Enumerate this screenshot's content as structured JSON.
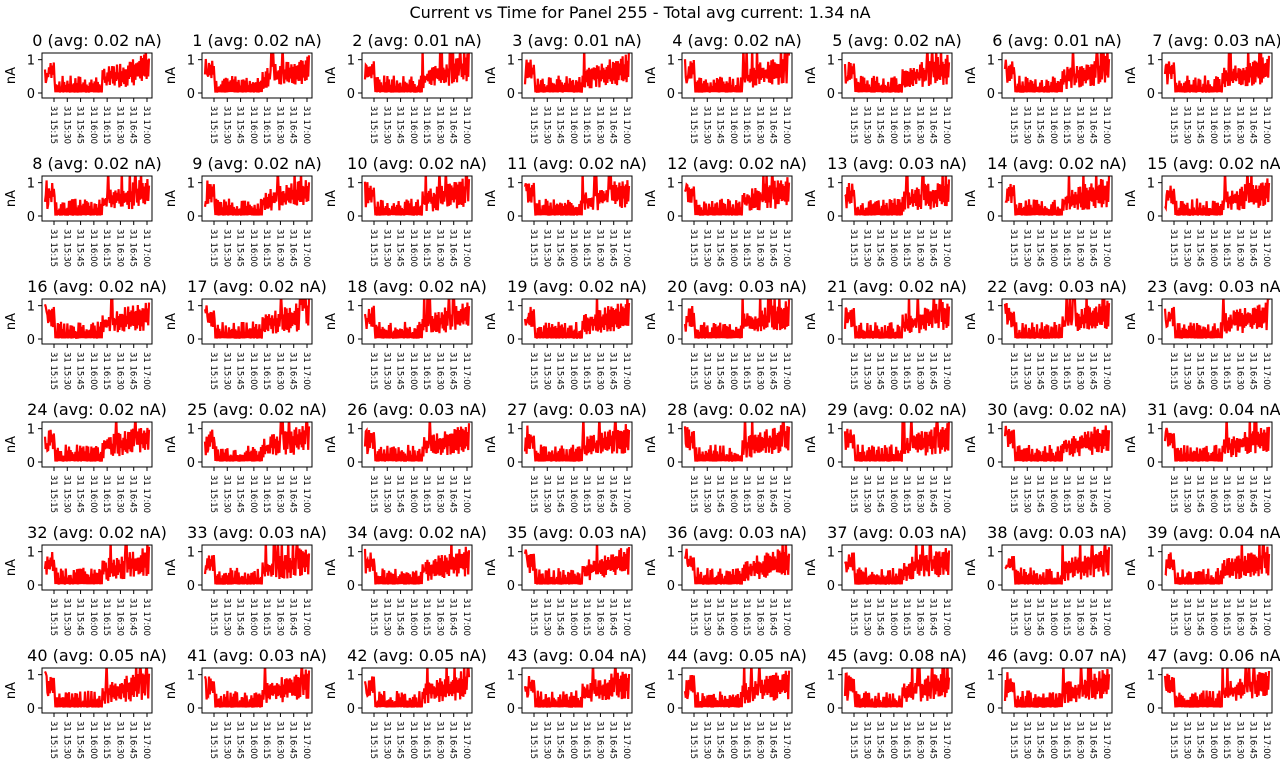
{
  "figure": {
    "title": "Current vs Time for Panel 255 - Total avg current: 1.34 nA"
  },
  "style": {
    "line_color": "#ff0000",
    "axes_color": "#000000",
    "background": "#ffffff"
  },
  "chart_data": {
    "type": "line",
    "layout": "small-multiples grid, 6 rows x 8 columns",
    "x_axis": {
      "kind": "time",
      "ticks": [
        "31 15:15",
        "31 15:30",
        "31 15:45",
        "31 16:00",
        "31 16:15",
        "31 16:30",
        "31 16:45",
        "31 17:00"
      ],
      "tick_rotation": "vertical (-90 degrees)",
      "range": [
        "31 15:10",
        "31 17:02"
      ]
    },
    "y_axis": {
      "label": "nA",
      "ticks": [
        0,
        1
      ],
      "range": [
        -0.15,
        1.2
      ]
    },
    "series_shape_description": "dense noisy current trace: initial spike near 1 nA at start, low baseline (~0-0.3 nA) until ~16:10, then rising noisy band to ~0.6-1 nA",
    "panels": [
      {
        "index": 0,
        "title": "0 (avg: 0.02 nA)",
        "avg_nA": 0.02
      },
      {
        "index": 1,
        "title": "1 (avg: 0.02 nA)",
        "avg_nA": 0.02
      },
      {
        "index": 2,
        "title": "2 (avg: 0.01 nA)",
        "avg_nA": 0.01
      },
      {
        "index": 3,
        "title": "3 (avg: 0.01 nA)",
        "avg_nA": 0.01
      },
      {
        "index": 4,
        "title": "4 (avg: 0.02 nA)",
        "avg_nA": 0.02
      },
      {
        "index": 5,
        "title": "5 (avg: 0.02 nA)",
        "avg_nA": 0.02
      },
      {
        "index": 6,
        "title": "6 (avg: 0.01 nA)",
        "avg_nA": 0.01
      },
      {
        "index": 7,
        "title": "7 (avg: 0.03 nA)",
        "avg_nA": 0.03
      },
      {
        "index": 8,
        "title": "8 (avg: 0.02 nA)",
        "avg_nA": 0.02
      },
      {
        "index": 9,
        "title": "9 (avg: 0.02 nA)",
        "avg_nA": 0.02
      },
      {
        "index": 10,
        "title": "10 (avg: 0.02 nA)",
        "avg_nA": 0.02
      },
      {
        "index": 11,
        "title": "11 (avg: 0.02 nA)",
        "avg_nA": 0.02
      },
      {
        "index": 12,
        "title": "12 (avg: 0.02 nA)",
        "avg_nA": 0.02
      },
      {
        "index": 13,
        "title": "13 (avg: 0.03 nA)",
        "avg_nA": 0.03
      },
      {
        "index": 14,
        "title": "14 (avg: 0.02 nA)",
        "avg_nA": 0.02
      },
      {
        "index": 15,
        "title": "15 (avg: 0.02 nA)",
        "avg_nA": 0.02
      },
      {
        "index": 16,
        "title": "16 (avg: 0.02 nA)",
        "avg_nA": 0.02
      },
      {
        "index": 17,
        "title": "17 (avg: 0.02 nA)",
        "avg_nA": 0.02
      },
      {
        "index": 18,
        "title": "18 (avg: 0.02 nA)",
        "avg_nA": 0.02
      },
      {
        "index": 19,
        "title": "19 (avg: 0.02 nA)",
        "avg_nA": 0.02
      },
      {
        "index": 20,
        "title": "20 (avg: 0.03 nA)",
        "avg_nA": 0.03
      },
      {
        "index": 21,
        "title": "21 (avg: 0.02 nA)",
        "avg_nA": 0.02
      },
      {
        "index": 22,
        "title": "22 (avg: 0.03 nA)",
        "avg_nA": 0.03
      },
      {
        "index": 23,
        "title": "23 (avg: 0.03 nA)",
        "avg_nA": 0.03
      },
      {
        "index": 24,
        "title": "24 (avg: 0.02 nA)",
        "avg_nA": 0.02
      },
      {
        "index": 25,
        "title": "25 (avg: 0.02 nA)",
        "avg_nA": 0.02
      },
      {
        "index": 26,
        "title": "26 (avg: 0.03 nA)",
        "avg_nA": 0.03
      },
      {
        "index": 27,
        "title": "27 (avg: 0.03 nA)",
        "avg_nA": 0.03
      },
      {
        "index": 28,
        "title": "28 (avg: 0.02 nA)",
        "avg_nA": 0.02
      },
      {
        "index": 29,
        "title": "29 (avg: 0.02 nA)",
        "avg_nA": 0.02
      },
      {
        "index": 30,
        "title": "30 (avg: 0.02 nA)",
        "avg_nA": 0.02
      },
      {
        "index": 31,
        "title": "31 (avg: 0.04 nA)",
        "avg_nA": 0.04
      },
      {
        "index": 32,
        "title": "32 (avg: 0.02 nA)",
        "avg_nA": 0.02
      },
      {
        "index": 33,
        "title": "33 (avg: 0.03 nA)",
        "avg_nA": 0.03
      },
      {
        "index": 34,
        "title": "34 (avg: 0.02 nA)",
        "avg_nA": 0.02
      },
      {
        "index": 35,
        "title": "35 (avg: 0.03 nA)",
        "avg_nA": 0.03
      },
      {
        "index": 36,
        "title": "36 (avg: 0.03 nA)",
        "avg_nA": 0.03
      },
      {
        "index": 37,
        "title": "37 (avg: 0.03 nA)",
        "avg_nA": 0.03
      },
      {
        "index": 38,
        "title": "38 (avg: 0.03 nA)",
        "avg_nA": 0.03
      },
      {
        "index": 39,
        "title": "39 (avg: 0.04 nA)",
        "avg_nA": 0.04
      },
      {
        "index": 40,
        "title": "40 (avg: 0.05 nA)",
        "avg_nA": 0.05
      },
      {
        "index": 41,
        "title": "41 (avg: 0.03 nA)",
        "avg_nA": 0.03
      },
      {
        "index": 42,
        "title": "42 (avg: 0.05 nA)",
        "avg_nA": 0.05
      },
      {
        "index": 43,
        "title": "43 (avg: 0.04 nA)",
        "avg_nA": 0.04
      },
      {
        "index": 44,
        "title": "44 (avg: 0.05 nA)",
        "avg_nA": 0.05
      },
      {
        "index": 45,
        "title": "45 (avg: 0.08 nA)",
        "avg_nA": 0.08
      },
      {
        "index": 46,
        "title": "46 (avg: 0.07 nA)",
        "avg_nA": 0.07
      },
      {
        "index": 47,
        "title": "47 (avg: 0.06 nA)",
        "avg_nA": 0.06
      }
    ]
  }
}
